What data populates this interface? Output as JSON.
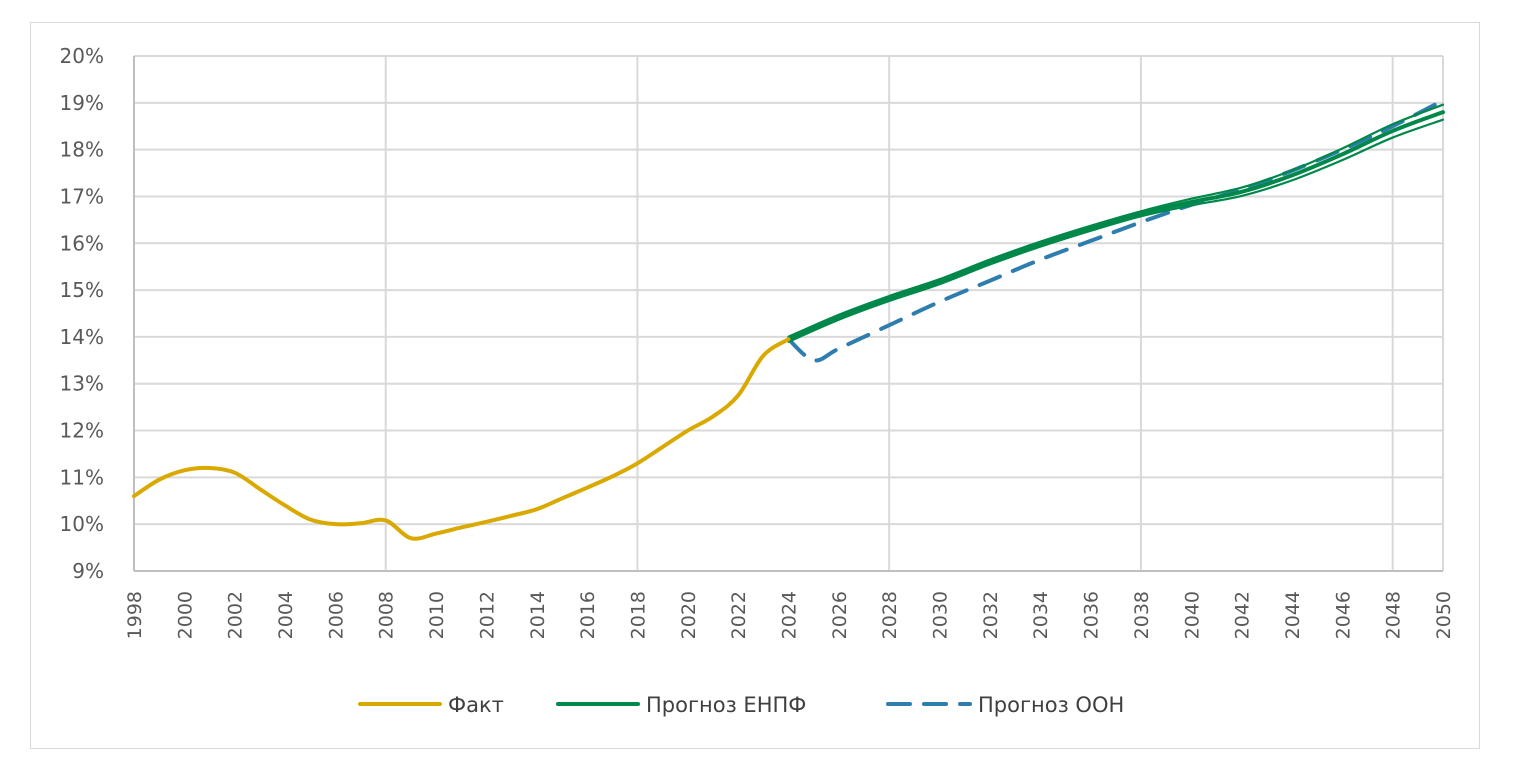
{
  "chart_data": {
    "type": "line",
    "title": "",
    "xlabel": "",
    "ylabel": "",
    "ylim": [
      9,
      20
    ],
    "xlim": [
      1998,
      2050
    ],
    "y_ticks": [
      "9%",
      "10%",
      "11%",
      "12%",
      "13%",
      "14%",
      "15%",
      "16%",
      "17%",
      "18%",
      "19%",
      "20%"
    ],
    "x_ticks": [
      "1998",
      "2000",
      "2002",
      "2004",
      "2006",
      "2008",
      "2010",
      "2012",
      "2014",
      "2016",
      "2018",
      "2020",
      "2022",
      "2024",
      "2026",
      "2028",
      "2030",
      "2032",
      "2034",
      "2036",
      "2038",
      "2040",
      "2042",
      "2044",
      "2046",
      "2048",
      "2050"
    ],
    "grid": true,
    "legend_position": "bottom",
    "series": [
      {
        "name": "Факт",
        "color": "#D9A900",
        "style": "solid",
        "x": [
          1998,
          1999,
          2000,
          2001,
          2002,
          2003,
          2004,
          2005,
          2006,
          2007,
          2008,
          2009,
          2010,
          2011,
          2012,
          2013,
          2014,
          2015,
          2016,
          2017,
          2018,
          2019,
          2020,
          2021,
          2022,
          2023,
          2024
        ],
        "values": [
          10.6,
          10.95,
          11.15,
          11.2,
          11.1,
          10.75,
          10.4,
          10.1,
          10.0,
          10.02,
          10.08,
          9.7,
          9.8,
          9.93,
          10.05,
          10.18,
          10.32,
          10.55,
          10.78,
          11.02,
          11.3,
          11.65,
          12.0,
          12.3,
          12.75,
          13.6,
          13.95
        ]
      },
      {
        "name": "Прогноз ЕНПФ",
        "color": "#00884A",
        "style": "solid",
        "x": [
          2024,
          2026,
          2028,
          2030,
          2032,
          2034,
          2036,
          2038,
          2040,
          2042,
          2044,
          2046,
          2048,
          2050
        ],
        "values": [
          13.95,
          14.42,
          14.82,
          15.18,
          15.6,
          15.98,
          16.32,
          16.63,
          16.88,
          17.1,
          17.45,
          17.9,
          18.4,
          18.8
        ]
      },
      {
        "name": "Прогноз ООН",
        "color": "#2E7DAF",
        "style": "dashed",
        "x": [
          2024,
          2025,
          2026,
          2028,
          2030,
          2032,
          2034,
          2036,
          2038,
          2040,
          2042,
          2044,
          2046,
          2048,
          2050
        ],
        "values": [
          13.95,
          13.5,
          13.75,
          14.25,
          14.75,
          15.2,
          15.65,
          16.05,
          16.45,
          16.82,
          17.15,
          17.55,
          18.0,
          18.5,
          19.05
        ]
      }
    ]
  },
  "legend": {
    "items": [
      {
        "label": "Факт",
        "color": "#D9A900",
        "style": "solid"
      },
      {
        "label": "Прогноз ЕНПФ",
        "color": "#00884A",
        "style": "solid"
      },
      {
        "label": "Прогноз ООН",
        "color": "#2E7DAF",
        "style": "dashed"
      }
    ]
  },
  "colors": {
    "grid": "#d9d9d9",
    "axis_text": "#595959",
    "frame": "#d9d9d9"
  }
}
